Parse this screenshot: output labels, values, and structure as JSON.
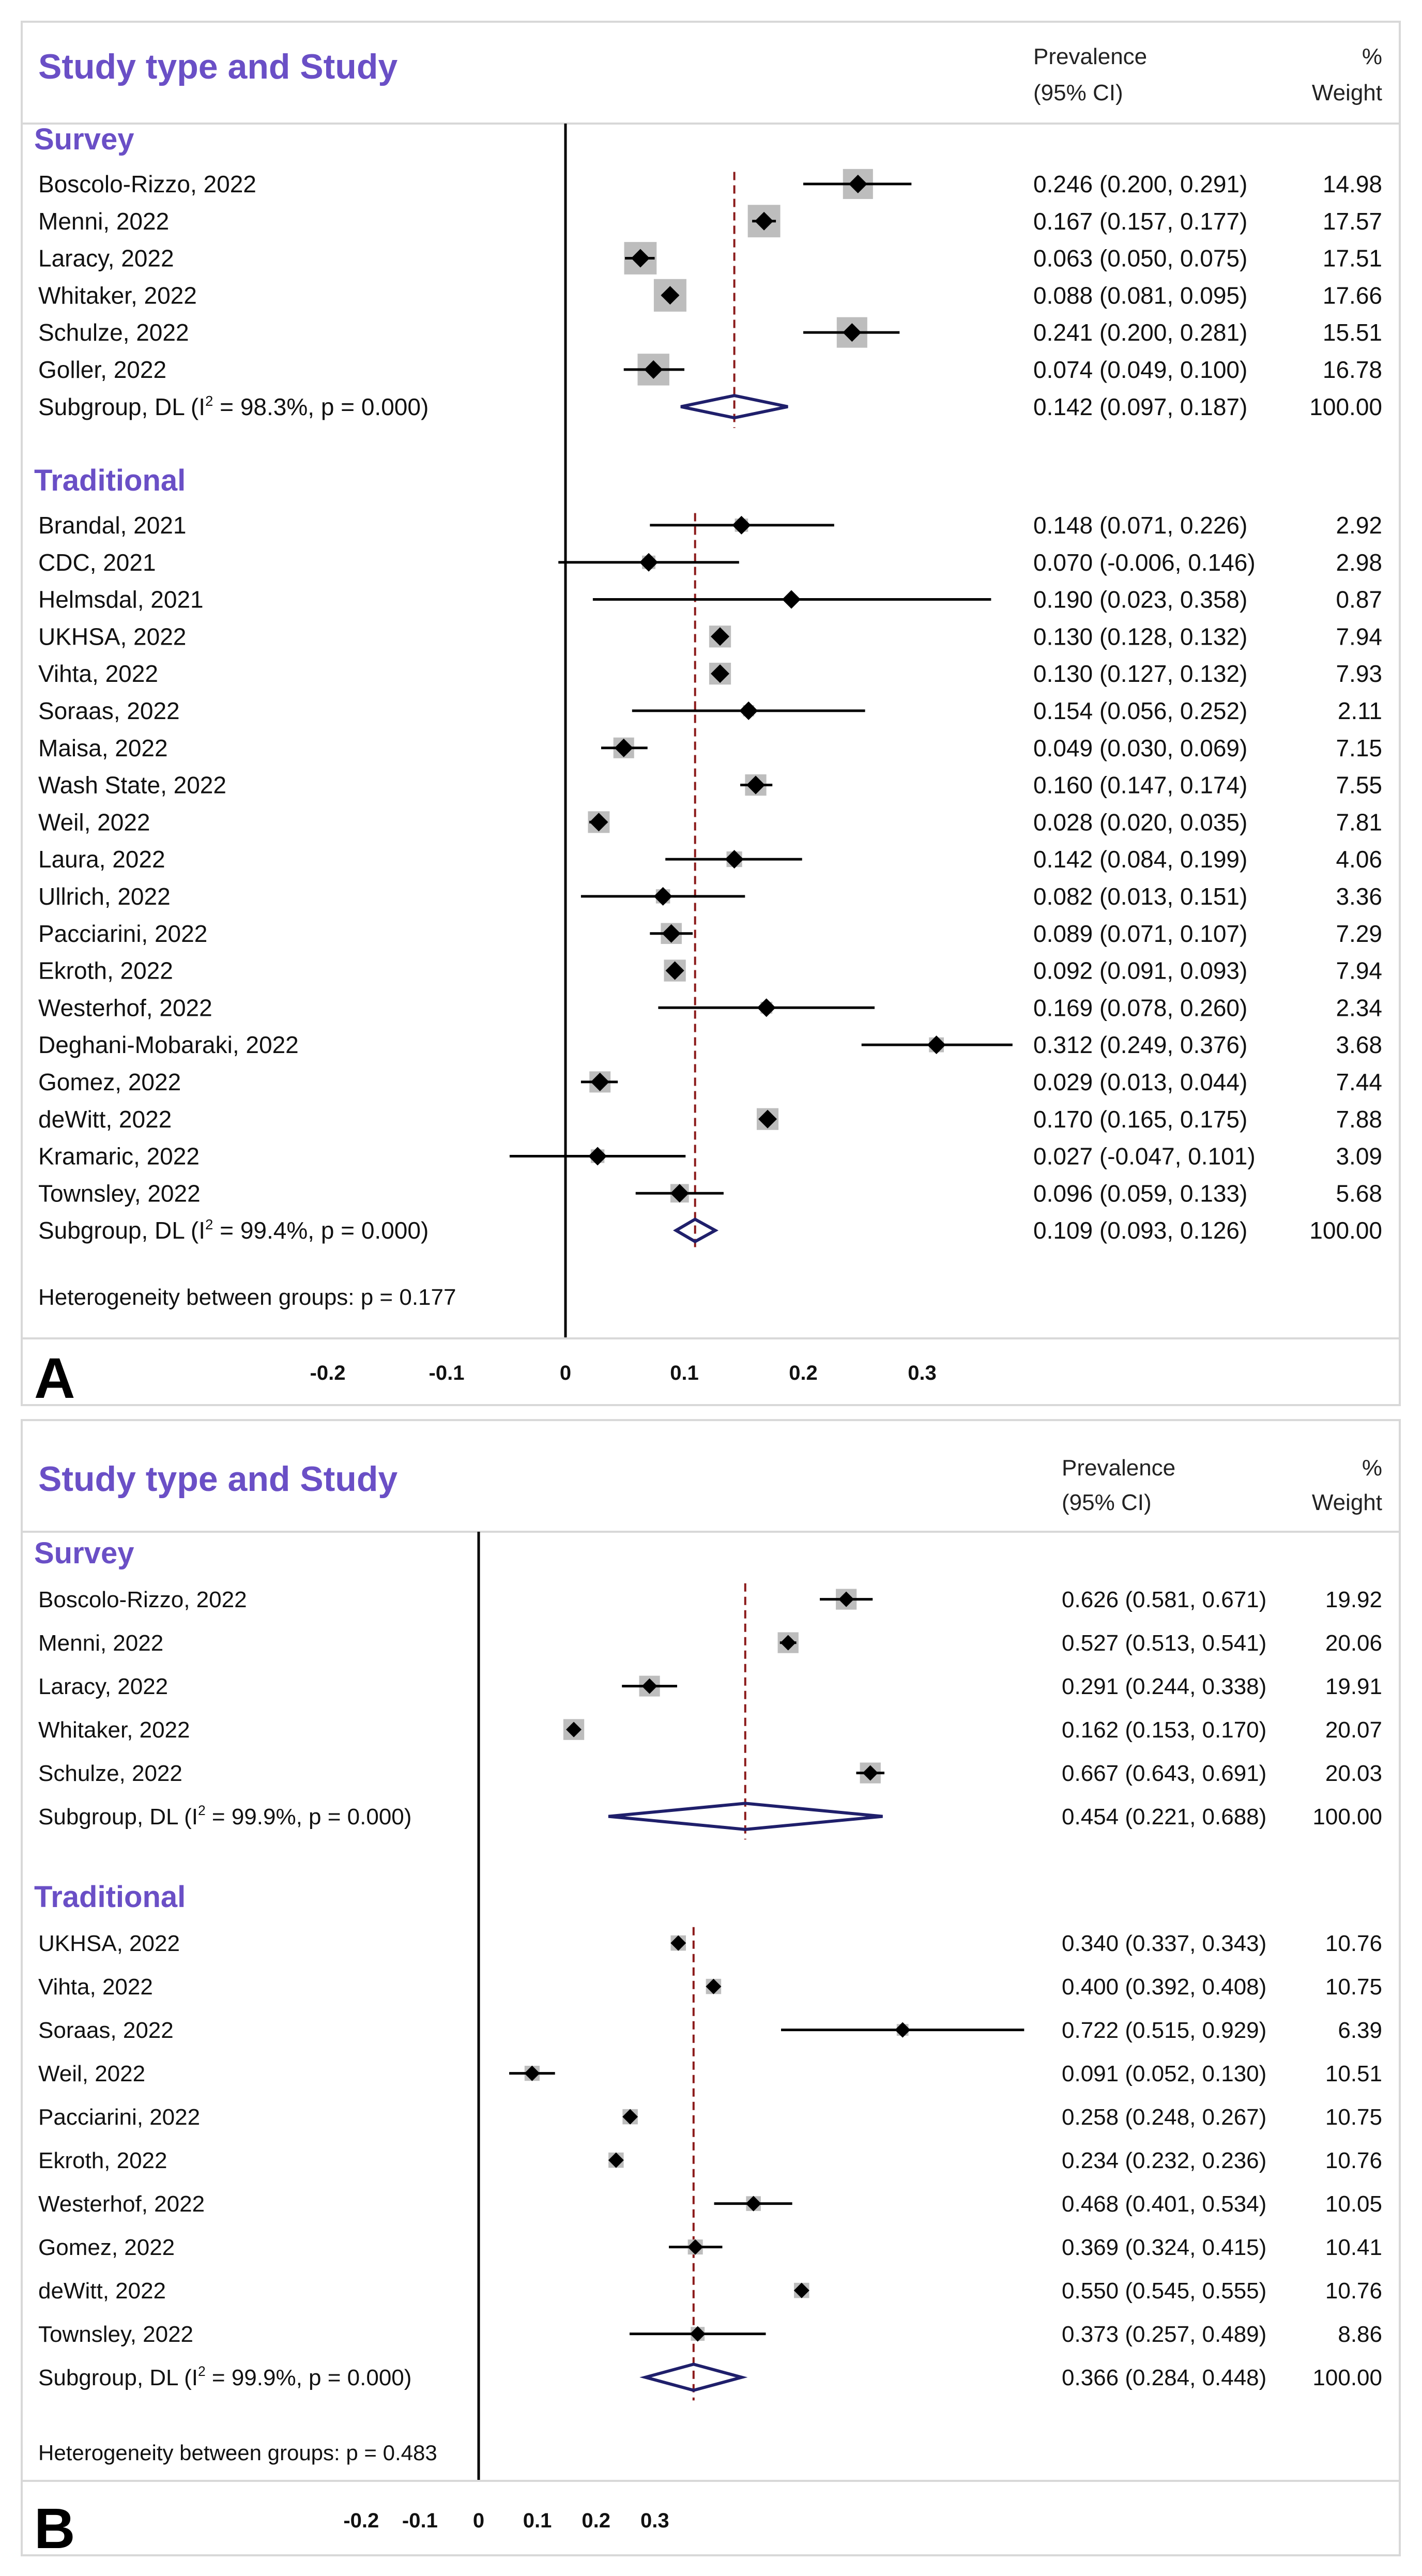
{
  "chart_data": [
    {
      "type": "forest",
      "panel_label": "A",
      "title": "Study type and Study",
      "header_prevalence": "Prevalence",
      "header_ci": "(95% CI)",
      "header_pct": "%",
      "header_weight": "Weight",
      "xlim": [
        -0.2,
        0.35
      ],
      "xticks": [
        -0.2,
        -0.1,
        0,
        0.1,
        0.2,
        0.3
      ],
      "xtick_labels": [
        "-0.2",
        "-0.1",
        "0",
        "0.1",
        "0.2",
        "0.3"
      ],
      "heterogeneity": "Heterogeneity between groups: p = 0.177",
      "groups": [
        {
          "name": "Survey",
          "pooled": 0.142,
          "studies": [
            {
              "label": "Boscolo-Rizzo, 2022",
              "est": 0.246,
              "lo": 0.2,
              "hi": 0.291,
              "ci_text": "0.246 (0.200, 0.291)",
              "weight": "14.98",
              "w": 14.98
            },
            {
              "label": "Menni, 2022",
              "est": 0.167,
              "lo": 0.157,
              "hi": 0.177,
              "ci_text": "0.167 (0.157, 0.177)",
              "weight": "17.57",
              "w": 17.57
            },
            {
              "label": "Laracy, 2022",
              "est": 0.063,
              "lo": 0.05,
              "hi": 0.075,
              "ci_text": "0.063 (0.050, 0.075)",
              "weight": "17.51",
              "w": 17.51
            },
            {
              "label": "Whitaker, 2022",
              "est": 0.088,
              "lo": 0.081,
              "hi": 0.095,
              "ci_text": "0.088 (0.081, 0.095)",
              "weight": "17.66",
              "w": 17.66
            },
            {
              "label": "Schulze, 2022",
              "est": 0.241,
              "lo": 0.2,
              "hi": 0.281,
              "ci_text": "0.241 (0.200, 0.281)",
              "weight": "15.51",
              "w": 15.51
            },
            {
              "label": "Goller, 2022",
              "est": 0.074,
              "lo": 0.049,
              "hi": 0.1,
              "ci_text": "0.074 (0.049, 0.100)",
              "weight": "16.78",
              "w": 16.78
            }
          ],
          "subgroup": {
            "label_pre": "Subgroup, DL (I",
            "label_sup": "2",
            "label_post": " = 98.3%, p = 0.000)",
            "est": 0.142,
            "lo": 0.097,
            "hi": 0.187,
            "ci_text": "0.142 (0.097, 0.187)",
            "weight": "100.00"
          }
        },
        {
          "name": "Traditional",
          "pooled": 0.109,
          "studies": [
            {
              "label": "Brandal, 2021",
              "est": 0.148,
              "lo": 0.071,
              "hi": 0.226,
              "ci_text": "0.148 (0.071, 0.226)",
              "weight": "2.92",
              "w": 2.92
            },
            {
              "label": "CDC, 2021",
              "est": 0.07,
              "lo": -0.006,
              "hi": 0.146,
              "ci_text": "0.070 (-0.006, 0.146)",
              "weight": "2.98",
              "w": 2.98
            },
            {
              "label": "Helmsdal, 2021",
              "est": 0.19,
              "lo": 0.023,
              "hi": 0.358,
              "ci_text": "0.190 (0.023, 0.358)",
              "weight": "0.87",
              "w": 0.87
            },
            {
              "label": "UKHSA, 2022",
              "est": 0.13,
              "lo": 0.128,
              "hi": 0.132,
              "ci_text": "0.130 (0.128, 0.132)",
              "weight": "7.94",
              "w": 7.94
            },
            {
              "label": "Vihta, 2022",
              "est": 0.13,
              "lo": 0.127,
              "hi": 0.132,
              "ci_text": "0.130 (0.127, 0.132)",
              "weight": "7.93",
              "w": 7.93
            },
            {
              "label": "Soraas, 2022",
              "est": 0.154,
              "lo": 0.056,
              "hi": 0.252,
              "ci_text": "0.154 (0.056, 0.252)",
              "weight": "2.11",
              "w": 2.11
            },
            {
              "label": "Maisa, 2022",
              "est": 0.049,
              "lo": 0.03,
              "hi": 0.069,
              "ci_text": "0.049 (0.030, 0.069)",
              "weight": "7.15",
              "w": 7.15
            },
            {
              "label": "Wash State, 2022",
              "est": 0.16,
              "lo": 0.147,
              "hi": 0.174,
              "ci_text": "0.160 (0.147, 0.174)",
              "weight": "7.55",
              "w": 7.55
            },
            {
              "label": "Weil, 2022",
              "est": 0.028,
              "lo": 0.02,
              "hi": 0.035,
              "ci_text": "0.028 (0.020, 0.035)",
              "weight": "7.81",
              "w": 7.81
            },
            {
              "label": "Laura, 2022",
              "est": 0.142,
              "lo": 0.084,
              "hi": 0.199,
              "ci_text": "0.142 (0.084, 0.199)",
              "weight": "4.06",
              "w": 4.06
            },
            {
              "label": "Ullrich, 2022",
              "est": 0.082,
              "lo": 0.013,
              "hi": 0.151,
              "ci_text": "0.082 (0.013, 0.151)",
              "weight": "3.36",
              "w": 3.36
            },
            {
              "label": "Pacciarini, 2022",
              "est": 0.089,
              "lo": 0.071,
              "hi": 0.107,
              "ci_text": "0.089 (0.071, 0.107)",
              "weight": "7.29",
              "w": 7.29
            },
            {
              "label": "Ekroth, 2022",
              "est": 0.092,
              "lo": 0.091,
              "hi": 0.093,
              "ci_text": "0.092 (0.091, 0.093)",
              "weight": "7.94",
              "w": 7.94
            },
            {
              "label": "Westerhof, 2022",
              "est": 0.169,
              "lo": 0.078,
              "hi": 0.26,
              "ci_text": "0.169 (0.078, 0.260)",
              "weight": "2.34",
              "w": 2.34
            },
            {
              "label": "Deghani-Mobaraki, 2022",
              "est": 0.312,
              "lo": 0.249,
              "hi": 0.376,
              "ci_text": "0.312 (0.249, 0.376)",
              "weight": "3.68",
              "w": 3.68
            },
            {
              "label": "Gomez, 2022",
              "est": 0.029,
              "lo": 0.013,
              "hi": 0.044,
              "ci_text": "0.029 (0.013, 0.044)",
              "weight": "7.44",
              "w": 7.44
            },
            {
              "label": "deWitt, 2022",
              "est": 0.17,
              "lo": 0.165,
              "hi": 0.175,
              "ci_text": "0.170 (0.165, 0.175)",
              "weight": "7.88",
              "w": 7.88
            },
            {
              "label": "Kramaric, 2022",
              "est": 0.027,
              "lo": -0.047,
              "hi": 0.101,
              "ci_text": "0.027 (-0.047, 0.101)",
              "weight": "3.09",
              "w": 3.09
            },
            {
              "label": "Townsley, 2022",
              "est": 0.096,
              "lo": 0.059,
              "hi": 0.133,
              "ci_text": "0.096 (0.059, 0.133)",
              "weight": "5.68",
              "w": 5.68
            }
          ],
          "subgroup": {
            "label_pre": "Subgroup, DL (I",
            "label_sup": "2",
            "label_post": " = 99.4%, p = 0.000)",
            "est": 0.109,
            "lo": 0.093,
            "hi": 0.126,
            "ci_text": "0.109 (0.093, 0.126)",
            "weight": "100.00"
          }
        }
      ]
    },
    {
      "type": "forest",
      "panel_label": "B",
      "title": "Study type and Study",
      "header_prevalence": "Prevalence",
      "header_ci": "(95% CI)",
      "header_pct": "%",
      "header_weight": "Weight",
      "xlim": [
        -0.2,
        0.72
      ],
      "xticks": [
        -0.2,
        -0.1,
        0,
        0.1,
        0.2,
        0.3
      ],
      "xtick_labels": [
        "-0.2",
        "-0.1",
        "0",
        "0.1",
        "0.2",
        "0.3"
      ],
      "heterogeneity": "Heterogeneity between groups: p = 0.483",
      "groups": [
        {
          "name": "Survey",
          "pooled": 0.454,
          "studies": [
            {
              "label": "Boscolo-Rizzo, 2022",
              "est": 0.626,
              "lo": 0.581,
              "hi": 0.671,
              "ci_text": "0.626 (0.581, 0.671)",
              "weight": "19.92",
              "w": 19.92
            },
            {
              "label": "Menni, 2022",
              "est": 0.527,
              "lo": 0.513,
              "hi": 0.541,
              "ci_text": "0.527 (0.513, 0.541)",
              "weight": "20.06",
              "w": 20.06
            },
            {
              "label": "Laracy, 2022",
              "est": 0.291,
              "lo": 0.244,
              "hi": 0.338,
              "ci_text": "0.291 (0.244, 0.338)",
              "weight": "19.91",
              "w": 19.91
            },
            {
              "label": "Whitaker, 2022",
              "est": 0.162,
              "lo": 0.153,
              "hi": 0.17,
              "ci_text": "0.162 (0.153, 0.170)",
              "weight": "20.07",
              "w": 20.07
            },
            {
              "label": "Schulze, 2022",
              "est": 0.667,
              "lo": 0.643,
              "hi": 0.691,
              "ci_text": "0.667 (0.643, 0.691)",
              "weight": "20.03",
              "w": 20.03
            }
          ],
          "subgroup": {
            "label_pre": "Subgroup, DL (I",
            "label_sup": "2",
            "label_post": " = 99.9%, p = 0.000)",
            "est": 0.454,
            "lo": 0.221,
            "hi": 0.688,
            "ci_text": "0.454 (0.221, 0.688)",
            "weight": "100.00"
          }
        },
        {
          "name": "Traditional",
          "pooled": 0.366,
          "studies": [
            {
              "label": "UKHSA, 2022",
              "est": 0.34,
              "lo": 0.337,
              "hi": 0.343,
              "ci_text": "0.340 (0.337, 0.343)",
              "weight": "10.76",
              "w": 10.76
            },
            {
              "label": "Vihta, 2022",
              "est": 0.4,
              "lo": 0.392,
              "hi": 0.408,
              "ci_text": "0.400 (0.392, 0.408)",
              "weight": "10.75",
              "w": 10.75
            },
            {
              "label": "Soraas, 2022",
              "est": 0.722,
              "lo": 0.515,
              "hi": 0.929,
              "ci_text": "0.722 (0.515, 0.929)",
              "weight": "6.39",
              "w": 6.39
            },
            {
              "label": "Weil, 2022",
              "est": 0.091,
              "lo": 0.052,
              "hi": 0.13,
              "ci_text": "0.091 (0.052, 0.130)",
              "weight": "10.51",
              "w": 10.51
            },
            {
              "label": "Pacciarini, 2022",
              "est": 0.258,
              "lo": 0.248,
              "hi": 0.267,
              "ci_text": "0.258 (0.248, 0.267)",
              "weight": "10.75",
              "w": 10.75
            },
            {
              "label": "Ekroth, 2022",
              "est": 0.234,
              "lo": 0.232,
              "hi": 0.236,
              "ci_text": "0.234 (0.232, 0.236)",
              "weight": "10.76",
              "w": 10.76
            },
            {
              "label": "Westerhof, 2022",
              "est": 0.468,
              "lo": 0.401,
              "hi": 0.534,
              "ci_text": "0.468 (0.401, 0.534)",
              "weight": "10.05",
              "w": 10.05
            },
            {
              "label": "Gomez, 2022",
              "est": 0.369,
              "lo": 0.324,
              "hi": 0.415,
              "ci_text": "0.369 (0.324, 0.415)",
              "weight": "10.41",
              "w": 10.41
            },
            {
              "label": "deWitt, 2022",
              "est": 0.55,
              "lo": 0.545,
              "hi": 0.555,
              "ci_text": "0.550 (0.545, 0.555)",
              "weight": "10.76",
              "w": 10.76
            },
            {
              "label": "Townsley, 2022",
              "est": 0.373,
              "lo": 0.257,
              "hi": 0.489,
              "ci_text": "0.373 (0.257, 0.489)",
              "weight": "8.86",
              "w": 8.86
            }
          ],
          "subgroup": {
            "label_pre": "Subgroup, DL (I",
            "label_sup": "2",
            "label_post": " = 99.9%, p = 0.000)",
            "est": 0.366,
            "lo": 0.284,
            "hi": 0.448,
            "ci_text": "0.366 (0.284, 0.448)",
            "weight": "100.00"
          }
        }
      ]
    }
  ]
}
